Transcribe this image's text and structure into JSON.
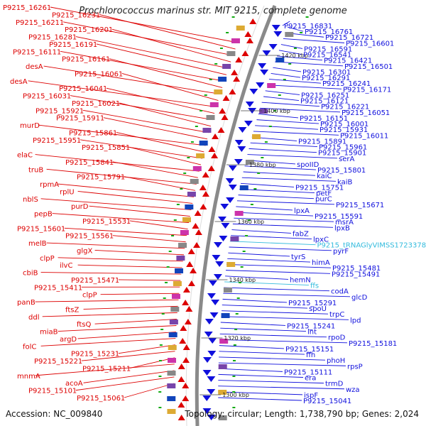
{
  "title": "Prochlorococcus marinus str. MIT 9215, complete genome",
  "accession": "Accession: NC_009840",
  "topology": "Topology: circular; Length: 1,738,790 bp; Genes: 2,024",
  "colors": {
    "forward": "#dd0000",
    "reverse": "#1010dd",
    "rna": "#33bbdd",
    "backbone": "#888888",
    "ticks": "#11aa11"
  },
  "kbp_labels": [
    "1420 kbp",
    "1400 kbp",
    "1380 kbp",
    "1360 kbp",
    "1340 kbp",
    "1320 kbp",
    "1300 kbp"
  ],
  "left_labels": [
    "P9215_16261",
    "P9215_16231",
    "P9215_16211",
    "P9215_16201",
    "P9215_16281",
    "P9215_16191",
    "P9215_16111",
    "P9215_16161",
    "desA",
    "P9215_16061",
    "desA",
    "P9215_16041",
    "P9215_16031",
    "P9215_16021",
    "P9215_15921",
    "P9215_15911",
    "murD",
    "P9215_15861",
    "P9215_15951",
    "P9215_15851",
    "elaC",
    "P9215_15841",
    "truB",
    "P9215_15791",
    "rpmA",
    "rplU",
    "nblS",
    "purD",
    "pepB",
    "P9215_15531",
    "P9215_15601",
    "P9215_15561",
    "melB",
    "glgX",
    "clpP",
    "ilvC",
    "cbiB",
    "P9215_15471",
    "P9215_15411",
    "clpP",
    "panB",
    "ftsZ",
    "ddl",
    "ftsQ",
    "miaB",
    "argD",
    "folC",
    "P9215_15231",
    "P9215_15221",
    "P9215_15211",
    "mnmA",
    "acoA",
    "P9215_15101",
    "P9215_15061"
  ],
  "right_labels": [
    "P9215_16831",
    "P9215_16761",
    "P9215_16721",
    "P9215_16601",
    "P9215_16591",
    "P9215_16541",
    "P9215_16421",
    "P9215_16501",
    "P9215_16301",
    "P9215_16291",
    "P9215_16241",
    "P9215_16171",
    "P9215_16251",
    "P9215_16121",
    "P9215_16221",
    "P9215_16051",
    "P9215_16151",
    "P9215_16001",
    "P9215_15931",
    "P9215_16011",
    "P9215_15891",
    "P9215_15961",
    "P9215_15901",
    "serA",
    "spoIID",
    "P9215_15801",
    "kaiC",
    "kaiB",
    "P9215_15751",
    "petF",
    "purC",
    "P9215_15671",
    "lpxA",
    "P9215_15591",
    "msrA",
    "lpxB",
    "fabZ",
    "lpxC",
    "P9215_tRNAGlyVIMSS1723378",
    "pyrF",
    "tyrS",
    "himA",
    "P9215_15481",
    "P9215_15491",
    "hemN",
    "ffs",
    "codA",
    "glcD",
    "P9215_15291",
    "spoU",
    "trpC",
    "lpd",
    "P9215_15241",
    "lnt",
    "rpoD",
    "P9215_15181",
    "P9215_15151",
    "ffh",
    "phoH",
    "rpsP",
    "P9215_15111",
    "era",
    "trmD",
    "wza",
    "ispF",
    "P9215_15041"
  ]
}
